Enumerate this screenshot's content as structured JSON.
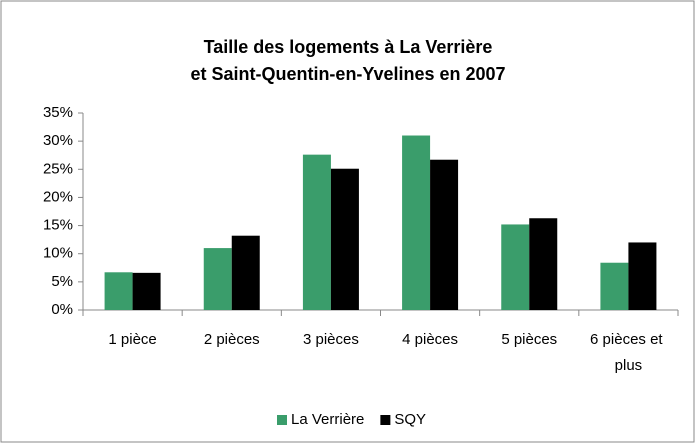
{
  "chart_data": {
    "type": "bar",
    "title": [
      "Taille des logements à La Verrière",
      "et Saint-Quentin-en-Yvelines en 2007"
    ],
    "categories": [
      "1 pièce",
      "2 pièces",
      "3 pièces",
      "4 pièces",
      "5 pièces",
      "6 pièces et plus"
    ],
    "series": [
      {
        "name": "La Verrière",
        "color": "#3a9d6b",
        "values": [
          6.7,
          11,
          27.6,
          31,
          15.2,
          8.4
        ]
      },
      {
        "name": "SQY",
        "color": "#000000",
        "values": [
          6.6,
          13.2,
          25.1,
          26.7,
          16.3,
          12
        ]
      }
    ],
    "ylim": [
      0,
      35
    ],
    "yticks": [
      {
        "value": 0,
        "label": "0%"
      },
      {
        "value": 5,
        "label": "5%"
      },
      {
        "value": 10,
        "label": "10%"
      },
      {
        "value": 15,
        "label": "15%"
      },
      {
        "value": 20,
        "label": "20%"
      },
      {
        "value": 25,
        "label": "25%"
      },
      {
        "value": 30,
        "label": "30%"
      },
      {
        "value": 35,
        "label": "35%"
      }
    ],
    "grid": false,
    "legend": "bottom"
  }
}
